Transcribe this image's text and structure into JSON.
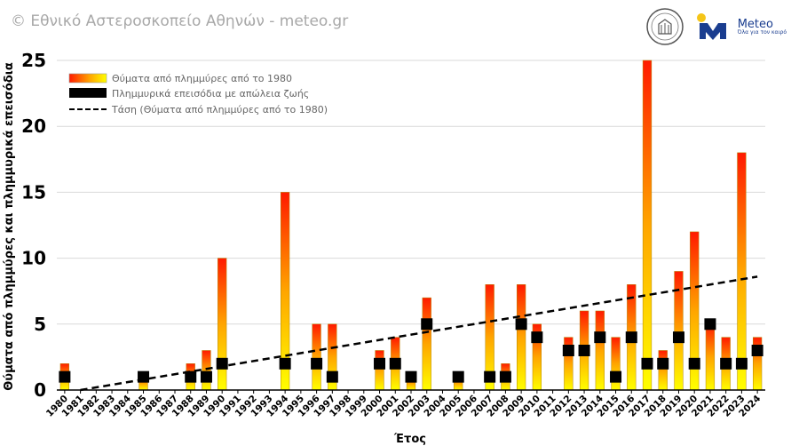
{
  "watermark": "© Εθνικό Αστεροσκοπείο Αθηνών - meteo.gr",
  "logo": {
    "name": "Meteo",
    "tagline": "Όλα για τον καιρό",
    "accent": "#1a3d8f",
    "sun": "#f5c518"
  },
  "colors": {
    "bar_top": "#ff1a00",
    "bar_mid": "#ffa500",
    "bar_bottom": "#ffff00",
    "marker": "#000000",
    "trend": "#000000",
    "grid": "#d9d9d9"
  },
  "chart_data": {
    "type": "bar",
    "xlabel": "Έτος",
    "ylabel": "Θύματα από πλημμύρες και πλημμυρικά επεισόδια",
    "ylim": [
      0,
      25
    ],
    "yticks": [
      0,
      5,
      10,
      15,
      20,
      25
    ],
    "grid": true,
    "legend_position": "top-left",
    "categories": [
      "1980",
      "1981",
      "1982",
      "1983",
      "1984",
      "1985",
      "1986",
      "1987",
      "1988",
      "1989",
      "1990",
      "1991",
      "1992",
      "1993",
      "1994",
      "1995",
      "1996",
      "1997",
      "1998",
      "1999",
      "2000",
      "2001",
      "2002",
      "2003",
      "2004",
      "2005",
      "2006",
      "2007",
      "2008",
      "2009",
      "2010",
      "2011",
      "2012",
      "2013",
      "2014",
      "2015",
      "2016",
      "2017",
      "2018",
      "2019",
      "2020",
      "2021",
      "2022",
      "2023",
      "2024"
    ],
    "series": [
      {
        "name": "Θύματα από πλημμύρες από το 1980",
        "kind": "bar",
        "values": [
          2,
          0,
          0,
          0,
          0,
          1,
          0,
          0,
          2,
          3,
          10,
          0,
          0,
          0,
          15,
          0,
          5,
          5,
          0,
          0,
          3,
          4,
          1,
          7,
          0,
          1,
          0,
          8,
          2,
          8,
          5,
          0,
          4,
          6,
          6,
          4,
          8,
          25,
          3,
          9,
          12,
          5,
          4,
          18,
          4
        ]
      },
      {
        "name": "Πλημμυρικά επεισόδια με απώλεια ζωής",
        "kind": "marker",
        "values": [
          1,
          0,
          0,
          0,
          0,
          1,
          0,
          0,
          1,
          1,
          2,
          0,
          0,
          0,
          2,
          0,
          2,
          1,
          0,
          0,
          2,
          2,
          1,
          5,
          0,
          1,
          0,
          1,
          1,
          5,
          4,
          0,
          3,
          3,
          4,
          1,
          4,
          2,
          2,
          4,
          2,
          5,
          2,
          2,
          3
        ]
      },
      {
        "name": "Τάση (Θύματα από πλημμύρες από το 1980)",
        "kind": "trend",
        "start": {
          "x": "1981",
          "y": 0
        },
        "end": {
          "x": "2024",
          "y": 8.6
        }
      }
    ]
  }
}
